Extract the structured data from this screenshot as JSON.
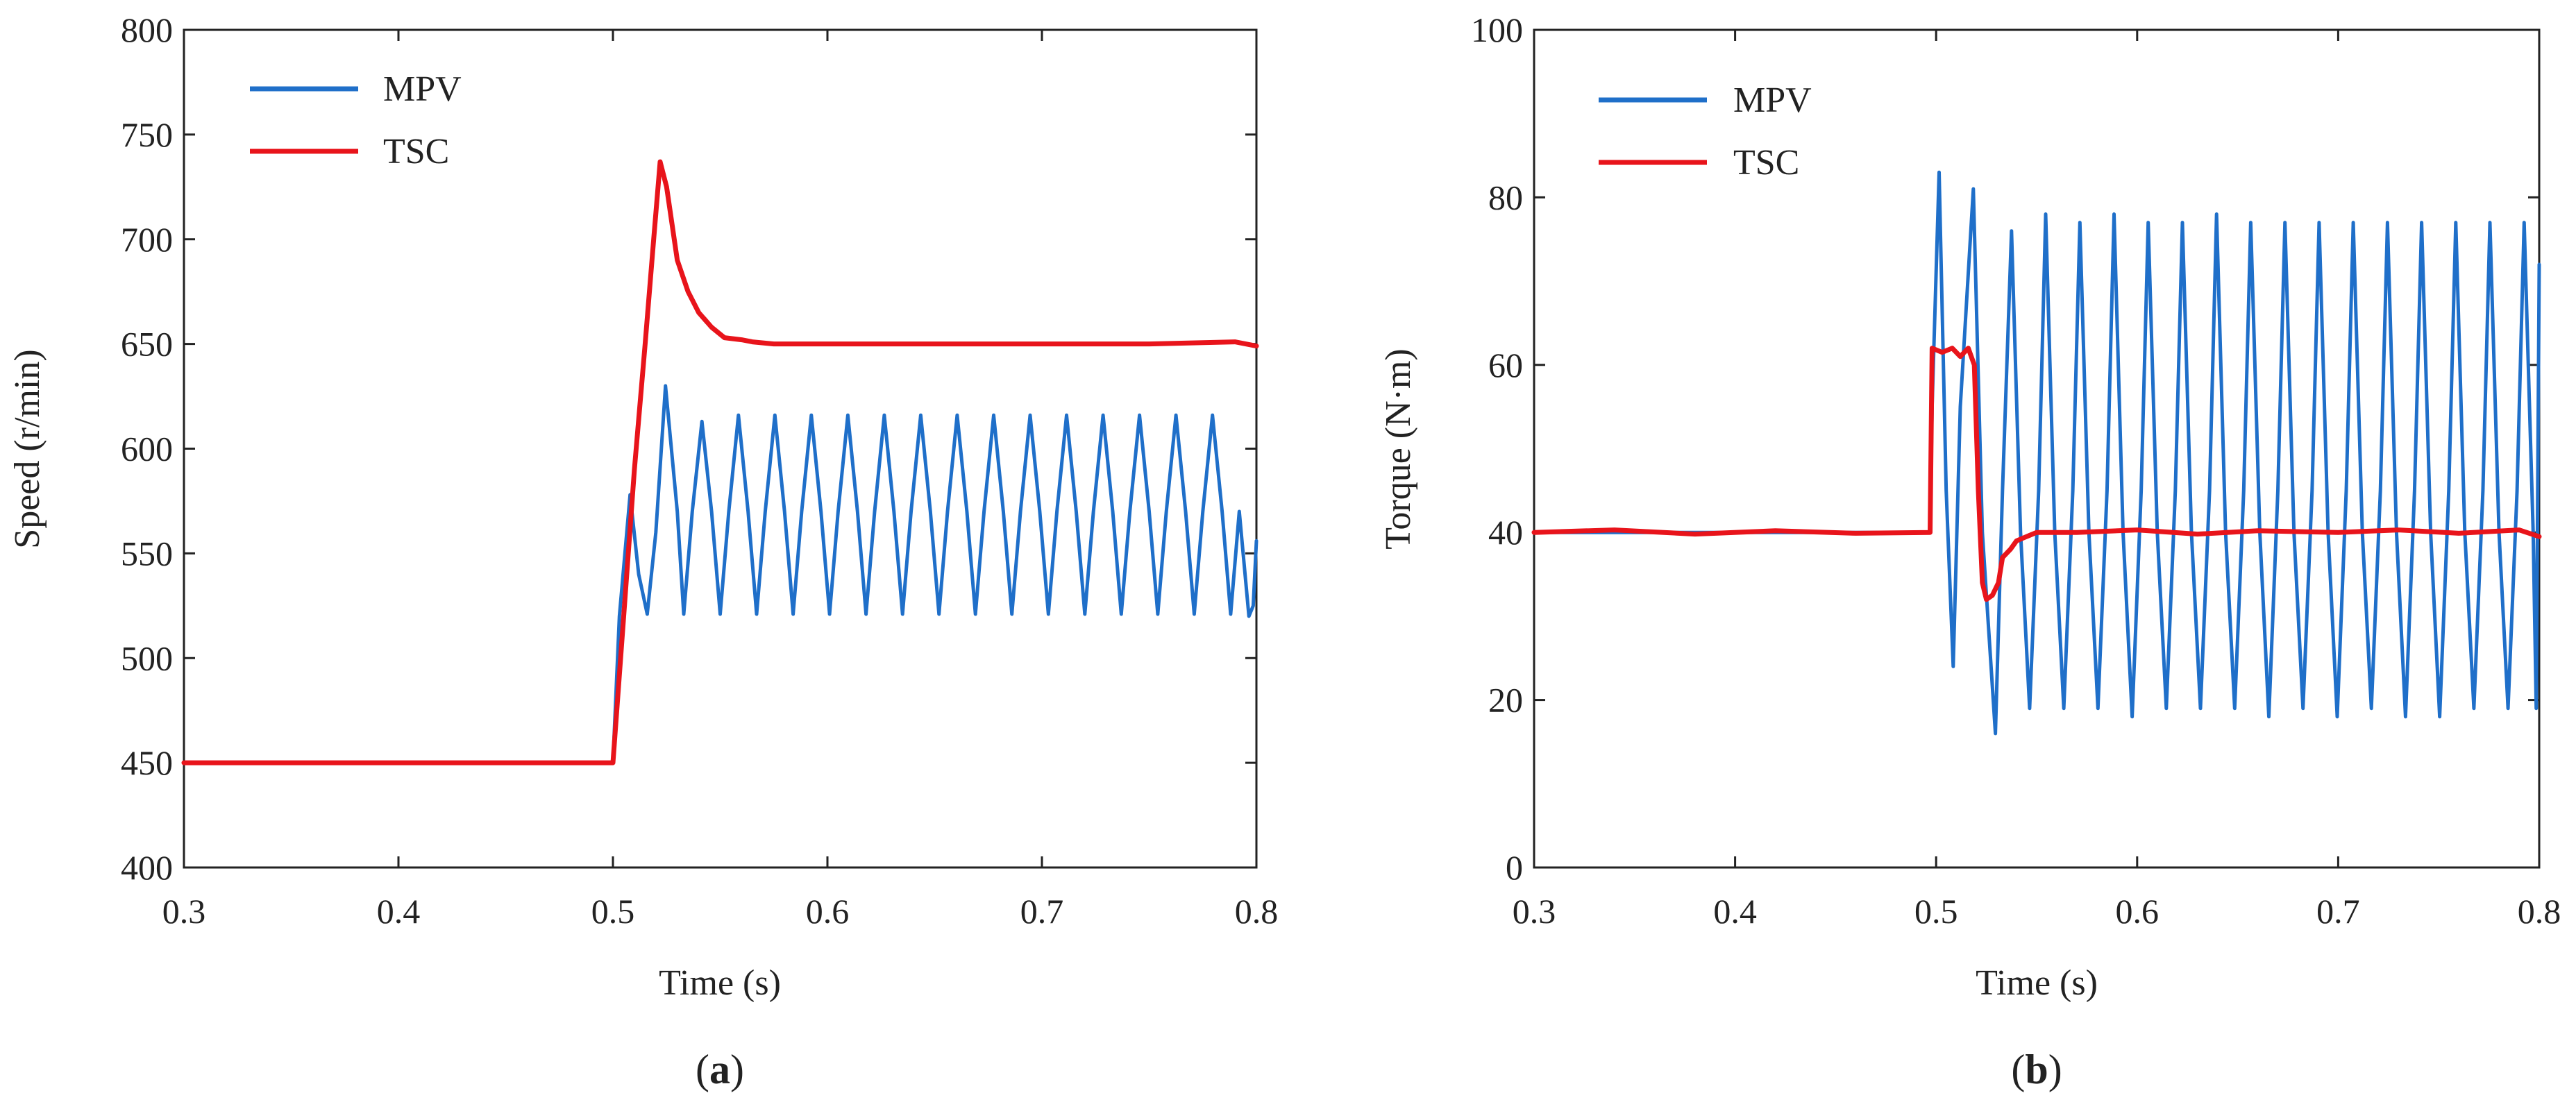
{
  "chart_data": [
    {
      "type": "line",
      "panel_label": "a",
      "title": "",
      "xlabel": "Time (s)",
      "ylabel": "Speed (r/min)",
      "xlim": [
        0.3,
        0.8
      ],
      "ylim": [
        400,
        800
      ],
      "xticks": [
        0.3,
        0.4,
        0.5,
        0.6,
        0.7,
        0.8
      ],
      "xtick_labels": [
        "0.3",
        "0.4",
        "0.5",
        "0.6",
        "0.7",
        "0.8"
      ],
      "yticks": [
        400,
        450,
        500,
        550,
        600,
        650,
        700,
        750,
        800
      ],
      "ytick_labels": [
        "400",
        "450",
        "500",
        "550",
        "600",
        "650",
        "700",
        "750",
        "800"
      ],
      "grid": false,
      "legend_position": "top-left",
      "series": [
        {
          "name": "MPV",
          "color": "#1f6fc9",
          "points": [
            [
              0.3,
              450
            ],
            [
              0.5,
              450
            ],
            [
              0.503,
              520
            ],
            [
              0.508,
              578
            ],
            [
              0.512,
              540
            ],
            [
              0.516,
              521
            ],
            [
              0.52,
              560
            ],
            [
              0.5245,
              630
            ],
            [
              0.53,
              570
            ],
            [
              0.533,
              521
            ],
            [
              0.537,
              570
            ],
            [
              0.5415,
              613
            ],
            [
              0.546,
              570
            ],
            [
              0.55,
              521
            ],
            [
              0.554,
              570
            ],
            [
              0.5585,
              616
            ],
            [
              0.563,
              570
            ],
            [
              0.567,
              521
            ],
            [
              0.571,
              570
            ],
            [
              0.5755,
              616
            ],
            [
              0.58,
              570
            ],
            [
              0.584,
              521
            ],
            [
              0.588,
              570
            ],
            [
              0.5925,
              616
            ],
            [
              0.597,
              570
            ],
            [
              0.601,
              521
            ],
            [
              0.605,
              570
            ],
            [
              0.6095,
              616
            ],
            [
              0.614,
              570
            ],
            [
              0.618,
              521
            ],
            [
              0.622,
              570
            ],
            [
              0.6265,
              616
            ],
            [
              0.631,
              570
            ],
            [
              0.635,
              521
            ],
            [
              0.639,
              570
            ],
            [
              0.6435,
              616
            ],
            [
              0.648,
              570
            ],
            [
              0.652,
              521
            ],
            [
              0.656,
              570
            ],
            [
              0.6605,
              616
            ],
            [
              0.665,
              570
            ],
            [
              0.669,
              521
            ],
            [
              0.673,
              570
            ],
            [
              0.6775,
              616
            ],
            [
              0.682,
              570
            ],
            [
              0.686,
              521
            ],
            [
              0.69,
              570
            ],
            [
              0.6945,
              616
            ],
            [
              0.699,
              570
            ],
            [
              0.703,
              521
            ],
            [
              0.707,
              570
            ],
            [
              0.7115,
              616
            ],
            [
              0.716,
              570
            ],
            [
              0.72,
              521
            ],
            [
              0.724,
              570
            ],
            [
              0.7285,
              616
            ],
            [
              0.733,
              570
            ],
            [
              0.737,
              521
            ],
            [
              0.741,
              570
            ],
            [
              0.7455,
              616
            ],
            [
              0.75,
              570
            ],
            [
              0.754,
              521
            ],
            [
              0.758,
              570
            ],
            [
              0.7625,
              616
            ],
            [
              0.767,
              570
            ],
            [
              0.771,
              521
            ],
            [
              0.775,
              570
            ],
            [
              0.7795,
              616
            ],
            [
              0.784,
              570
            ],
            [
              0.788,
              521
            ],
            [
              0.792,
              570
            ],
            [
              0.7965,
              520
            ],
            [
              0.7985,
              525
            ],
            [
              0.8,
              556
            ]
          ]
        },
        {
          "name": "TSC",
          "color": "#e8141b",
          "points": [
            [
              0.3,
              450
            ],
            [
              0.5,
              450
            ],
            [
              0.505,
              520
            ],
            [
              0.51,
              590
            ],
            [
              0.515,
              650
            ],
            [
              0.519,
              700
            ],
            [
              0.522,
              737
            ],
            [
              0.525,
              725
            ],
            [
              0.53,
              690
            ],
            [
              0.535,
              675
            ],
            [
              0.54,
              665
            ],
            [
              0.546,
              658
            ],
            [
              0.552,
              653
            ],
            [
              0.56,
              652
            ],
            [
              0.565,
              651
            ],
            [
              0.575,
              650
            ],
            [
              0.6,
              650
            ],
            [
              0.65,
              650
            ],
            [
              0.7,
              650
            ],
            [
              0.75,
              650
            ],
            [
              0.79,
              651
            ],
            [
              0.8,
              649
            ]
          ]
        }
      ]
    },
    {
      "type": "line",
      "panel_label": "b",
      "title": "",
      "xlabel": "Time (s)",
      "ylabel": "Torque (N·m)",
      "xlim": [
        0.3,
        0.8
      ],
      "ylim": [
        0,
        100
      ],
      "xticks": [
        0.3,
        0.4,
        0.5,
        0.6,
        0.7,
        0.8
      ],
      "xtick_labels": [
        "0.3",
        "0.4",
        "0.5",
        "0.6",
        "0.7",
        "0.8"
      ],
      "yticks": [
        0,
        20,
        40,
        60,
        80,
        100
      ],
      "ytick_labels": [
        "0",
        "20",
        "40",
        "60",
        "80",
        "100"
      ],
      "grid": false,
      "legend_position": "top-left",
      "series": [
        {
          "name": "MPV",
          "color": "#1f6fc9",
          "points": [
            [
              0.3,
              40
            ],
            [
              0.497,
              40
            ],
            [
              0.498,
              55
            ],
            [
              0.5015,
              83
            ],
            [
              0.505,
              45
            ],
            [
              0.5085,
              24
            ],
            [
              0.512,
              55
            ],
            [
              0.5185,
              81
            ],
            [
              0.523,
              40
            ],
            [
              0.5295,
              16
            ],
            [
              0.533,
              45
            ],
            [
              0.5375,
              76
            ],
            [
              0.542,
              40
            ],
            [
              0.5465,
              19
            ],
            [
              0.551,
              45
            ],
            [
              0.5545,
              78
            ],
            [
              0.559,
              40
            ],
            [
              0.5635,
              19
            ],
            [
              0.568,
              45
            ],
            [
              0.5715,
              77
            ],
            [
              0.576,
              40
            ],
            [
              0.5805,
              19
            ],
            [
              0.585,
              45
            ],
            [
              0.5885,
              78
            ],
            [
              0.593,
              40
            ],
            [
              0.5975,
              18
            ],
            [
              0.602,
              45
            ],
            [
              0.6055,
              77
            ],
            [
              0.61,
              40
            ],
            [
              0.6145,
              19
            ],
            [
              0.619,
              45
            ],
            [
              0.6225,
              77
            ],
            [
              0.627,
              40
            ],
            [
              0.6315,
              19
            ],
            [
              0.636,
              45
            ],
            [
              0.6395,
              78
            ],
            [
              0.644,
              40
            ],
            [
              0.6485,
              19
            ],
            [
              0.653,
              45
            ],
            [
              0.6565,
              77
            ],
            [
              0.661,
              40
            ],
            [
              0.6655,
              18
            ],
            [
              0.67,
              45
            ],
            [
              0.6735,
              77
            ],
            [
              0.678,
              40
            ],
            [
              0.6825,
              19
            ],
            [
              0.687,
              45
            ],
            [
              0.6905,
              77
            ],
            [
              0.695,
              40
            ],
            [
              0.6995,
              18
            ],
            [
              0.704,
              45
            ],
            [
              0.7075,
              77
            ],
            [
              0.712,
              40
            ],
            [
              0.7165,
              19
            ],
            [
              0.721,
              45
            ],
            [
              0.7245,
              77
            ],
            [
              0.729,
              40
            ],
            [
              0.7335,
              18
            ],
            [
              0.738,
              45
            ],
            [
              0.7415,
              77
            ],
            [
              0.746,
              40
            ],
            [
              0.7505,
              18
            ],
            [
              0.755,
              45
            ],
            [
              0.7585,
              77
            ],
            [
              0.763,
              40
            ],
            [
              0.7675,
              19
            ],
            [
              0.772,
              45
            ],
            [
              0.7755,
              77
            ],
            [
              0.78,
              40
            ],
            [
              0.7845,
              19
            ],
            [
              0.789,
              45
            ],
            [
              0.7925,
              77
            ],
            [
              0.797,
              40
            ],
            [
              0.7985,
              19
            ],
            [
              0.8,
              72
            ]
          ]
        },
        {
          "name": "TSC",
          "color": "#e8141b",
          "points": [
            [
              0.3,
              40
            ],
            [
              0.34,
              40.3
            ],
            [
              0.38,
              39.8
            ],
            [
              0.42,
              40.2
            ],
            [
              0.46,
              39.9
            ],
            [
              0.497,
              40
            ],
            [
              0.498,
              62
            ],
            [
              0.503,
              61.5
            ],
            [
              0.508,
              62
            ],
            [
              0.512,
              61
            ],
            [
              0.516,
              62
            ],
            [
              0.519,
              60
            ],
            [
              0.521,
              45
            ],
            [
              0.523,
              34
            ],
            [
              0.525,
              32
            ],
            [
              0.528,
              32.5
            ],
            [
              0.531,
              34
            ],
            [
              0.533,
              37
            ],
            [
              0.537,
              38
            ],
            [
              0.54,
              39
            ],
            [
              0.545,
              39.5
            ],
            [
              0.55,
              40
            ],
            [
              0.57,
              40
            ],
            [
              0.6,
              40.3
            ],
            [
              0.63,
              39.8
            ],
            [
              0.66,
              40.2
            ],
            [
              0.7,
              40
            ],
            [
              0.73,
              40.3
            ],
            [
              0.76,
              39.9
            ],
            [
              0.79,
              40.3
            ],
            [
              0.8,
              39.5
            ]
          ]
        }
      ]
    }
  ]
}
